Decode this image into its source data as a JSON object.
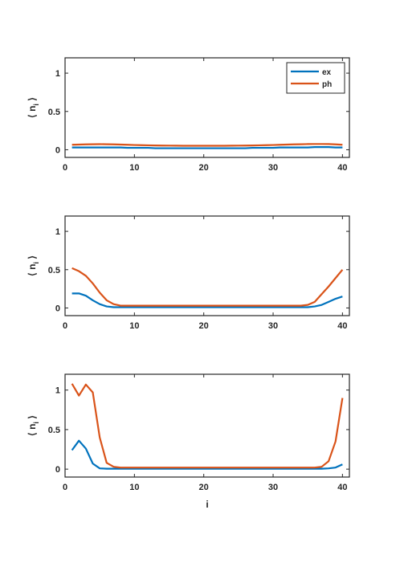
{
  "chart_data": [
    {
      "type": "line",
      "ylabel": "⟨ n_i ⟩",
      "xlabel": "",
      "xlim": [
        0,
        41
      ],
      "ylim": [
        -0.1,
        1.2
      ],
      "xticks": [
        "0",
        "10",
        "20",
        "30",
        "40"
      ],
      "yticks": [
        "0",
        "0.5",
        "1"
      ],
      "legend": {
        "placement": "top-right",
        "entries": [
          "ex",
          "ph"
        ]
      },
      "x": [
        1,
        2,
        3,
        4,
        5,
        6,
        7,
        8,
        9,
        10,
        11,
        12,
        13,
        14,
        15,
        16,
        17,
        18,
        19,
        20,
        21,
        22,
        23,
        24,
        25,
        26,
        27,
        28,
        29,
        30,
        31,
        32,
        33,
        34,
        35,
        36,
        37,
        38,
        39,
        40
      ],
      "series": [
        {
          "name": "ex",
          "color": "#0072BD",
          "values": [
            0.03,
            0.03,
            0.03,
            0.03,
            0.03,
            0.03,
            0.03,
            0.03,
            0.025,
            0.025,
            0.025,
            0.025,
            0.02,
            0.02,
            0.02,
            0.02,
            0.02,
            0.02,
            0.02,
            0.02,
            0.02,
            0.02,
            0.02,
            0.02,
            0.02,
            0.02,
            0.025,
            0.025,
            0.025,
            0.025,
            0.03,
            0.03,
            0.03,
            0.03,
            0.03,
            0.035,
            0.035,
            0.035,
            0.03,
            0.03
          ]
        },
        {
          "name": "ph",
          "color": "#D95319",
          "values": [
            0.065,
            0.068,
            0.07,
            0.072,
            0.073,
            0.072,
            0.07,
            0.068,
            0.065,
            0.062,
            0.06,
            0.058,
            0.056,
            0.055,
            0.054,
            0.053,
            0.052,
            0.052,
            0.052,
            0.052,
            0.052,
            0.052,
            0.052,
            0.053,
            0.054,
            0.055,
            0.056,
            0.058,
            0.06,
            0.062,
            0.065,
            0.068,
            0.07,
            0.072,
            0.074,
            0.075,
            0.075,
            0.074,
            0.07,
            0.065
          ]
        }
      ]
    },
    {
      "type": "line",
      "ylabel": "⟨ n_i ⟩",
      "xlabel": "",
      "xlim": [
        0,
        41
      ],
      "ylim": [
        -0.1,
        1.2
      ],
      "xticks": [
        "0",
        "10",
        "20",
        "30",
        "40"
      ],
      "yticks": [
        "0",
        "0.5",
        "1"
      ],
      "x": [
        1,
        2,
        3,
        4,
        5,
        6,
        7,
        8,
        9,
        10,
        11,
        12,
        13,
        14,
        15,
        16,
        17,
        18,
        19,
        20,
        21,
        22,
        23,
        24,
        25,
        26,
        27,
        28,
        29,
        30,
        31,
        32,
        33,
        34,
        35,
        36,
        37,
        38,
        39,
        40
      ],
      "series": [
        {
          "name": "ex",
          "color": "#0072BD",
          "values": [
            0.19,
            0.19,
            0.16,
            0.1,
            0.05,
            0.02,
            0.01,
            0.01,
            0.01,
            0.01,
            0.01,
            0.01,
            0.01,
            0.01,
            0.01,
            0.01,
            0.01,
            0.01,
            0.01,
            0.01,
            0.01,
            0.01,
            0.01,
            0.01,
            0.01,
            0.01,
            0.01,
            0.01,
            0.01,
            0.01,
            0.01,
            0.01,
            0.01,
            0.01,
            0.01,
            0.02,
            0.04,
            0.08,
            0.12,
            0.15
          ]
        },
        {
          "name": "ph",
          "color": "#D95319",
          "values": [
            0.52,
            0.48,
            0.42,
            0.32,
            0.2,
            0.1,
            0.05,
            0.03,
            0.03,
            0.03,
            0.03,
            0.03,
            0.03,
            0.03,
            0.03,
            0.03,
            0.03,
            0.03,
            0.03,
            0.03,
            0.03,
            0.03,
            0.03,
            0.03,
            0.03,
            0.03,
            0.03,
            0.03,
            0.03,
            0.03,
            0.03,
            0.03,
            0.03,
            0.03,
            0.04,
            0.08,
            0.18,
            0.28,
            0.39,
            0.5
          ]
        }
      ]
    },
    {
      "type": "line",
      "ylabel": "⟨ n_i ⟩",
      "xlabel": "i",
      "xlim": [
        0,
        41
      ],
      "ylim": [
        -0.1,
        1.2
      ],
      "xticks": [
        "0",
        "10",
        "20",
        "30",
        "40"
      ],
      "yticks": [
        "0",
        "0.5",
        "1"
      ],
      "x": [
        1,
        2,
        3,
        4,
        5,
        6,
        7,
        8,
        9,
        10,
        11,
        12,
        13,
        14,
        15,
        16,
        17,
        18,
        19,
        20,
        21,
        22,
        23,
        24,
        25,
        26,
        27,
        28,
        29,
        30,
        31,
        32,
        33,
        34,
        35,
        36,
        37,
        38,
        39,
        40
      ],
      "series": [
        {
          "name": "ex",
          "color": "#0072BD",
          "values": [
            0.24,
            0.36,
            0.26,
            0.07,
            0.01,
            0.005,
            0.005,
            0.005,
            0.005,
            0.005,
            0.005,
            0.005,
            0.005,
            0.005,
            0.005,
            0.005,
            0.005,
            0.005,
            0.005,
            0.005,
            0.005,
            0.005,
            0.005,
            0.005,
            0.005,
            0.005,
            0.005,
            0.005,
            0.005,
            0.005,
            0.005,
            0.005,
            0.005,
            0.005,
            0.005,
            0.005,
            0.005,
            0.01,
            0.02,
            0.06
          ]
        },
        {
          "name": "ph",
          "color": "#D95319",
          "values": [
            1.08,
            0.93,
            1.07,
            0.97,
            0.4,
            0.08,
            0.03,
            0.02,
            0.02,
            0.02,
            0.02,
            0.02,
            0.02,
            0.02,
            0.02,
            0.02,
            0.02,
            0.02,
            0.02,
            0.02,
            0.02,
            0.02,
            0.02,
            0.02,
            0.02,
            0.02,
            0.02,
            0.02,
            0.02,
            0.02,
            0.02,
            0.02,
            0.02,
            0.02,
            0.02,
            0.02,
            0.03,
            0.1,
            0.35,
            0.9
          ]
        }
      ]
    }
  ]
}
